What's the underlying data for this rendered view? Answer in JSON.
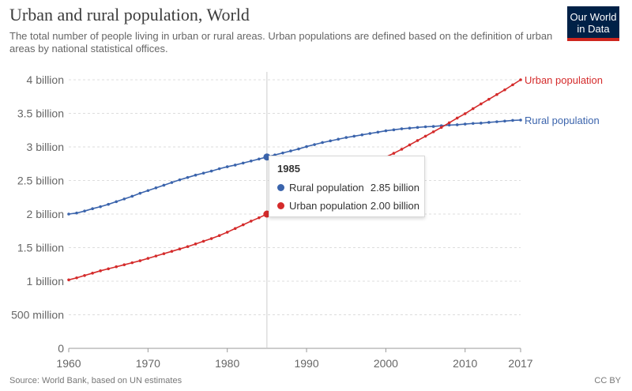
{
  "header": {
    "title": "Urban and rural population, World",
    "subtitle": "The total number of people living in urban or rural areas. Urban populations are defined based on the definition of urban areas by national statistical offices."
  },
  "logo": {
    "line1": "Our World",
    "line2": "in Data"
  },
  "footer": {
    "source": "Source: World Bank, based on UN estimates",
    "license": "CC BY"
  },
  "colors": {
    "rural": "#3b64ac",
    "urban": "#d42b2b",
    "grid": "#dddddd"
  },
  "tooltip": {
    "year": "1985",
    "rows": [
      {
        "name": "Rural population",
        "value": "2.85 billion"
      },
      {
        "name": "Urban population",
        "value": "2.00 billion"
      }
    ]
  },
  "chart_data": {
    "type": "line",
    "xlim": [
      1960,
      2017
    ],
    "ylim": [
      0,
      4000000000
    ],
    "x_ticks": [
      "1960",
      "1970",
      "1980",
      "1990",
      "2000",
      "2010",
      "2017"
    ],
    "y_ticks": [
      {
        "value": 0,
        "label": "0"
      },
      {
        "value": 500000000,
        "label": "500 million"
      },
      {
        "value": 1000000000,
        "label": "1 billion"
      },
      {
        "value": 1500000000,
        "label": "1.5 billion"
      },
      {
        "value": 2000000000,
        "label": "2 billion"
      },
      {
        "value": 2500000000,
        "label": "2.5 billion"
      },
      {
        "value": 3000000000,
        "label": "3 billion"
      },
      {
        "value": 3500000000,
        "label": "3.5 billion"
      },
      {
        "value": 4000000000,
        "label": "4 billion"
      }
    ],
    "x": [
      1960,
      1961,
      1962,
      1963,
      1964,
      1965,
      1966,
      1967,
      1968,
      1969,
      1970,
      1971,
      1972,
      1973,
      1974,
      1975,
      1976,
      1977,
      1978,
      1979,
      1980,
      1981,
      1982,
      1983,
      1984,
      1985,
      1986,
      1987,
      1988,
      1989,
      1990,
      1991,
      1992,
      1993,
      1994,
      1995,
      1996,
      1997,
      1998,
      1999,
      2000,
      2001,
      2002,
      2003,
      2004,
      2005,
      2006,
      2007,
      2008,
      2009,
      2010,
      2011,
      2012,
      2013,
      2014,
      2015,
      2016,
      2017
    ],
    "series": [
      {
        "name": "Rural population",
        "values": [
          2000000000,
          2015000000,
          2045000000,
          2080000000,
          2110000000,
          2145000000,
          2185000000,
          2225000000,
          2265000000,
          2310000000,
          2350000000,
          2390000000,
          2430000000,
          2470000000,
          2510000000,
          2545000000,
          2580000000,
          2610000000,
          2640000000,
          2675000000,
          2705000000,
          2730000000,
          2760000000,
          2790000000,
          2820000000,
          2850000000,
          2880000000,
          2910000000,
          2940000000,
          2970000000,
          3005000000,
          3035000000,
          3065000000,
          3090000000,
          3115000000,
          3140000000,
          3160000000,
          3180000000,
          3200000000,
          3220000000,
          3240000000,
          3255000000,
          3270000000,
          3280000000,
          3290000000,
          3300000000,
          3305000000,
          3315000000,
          3325000000,
          3330000000,
          3340000000,
          3350000000,
          3355000000,
          3365000000,
          3375000000,
          3385000000,
          3395000000,
          3400000000
        ]
      },
      {
        "name": "Urban population",
        "values": [
          1020000000,
          1050000000,
          1085000000,
          1120000000,
          1155000000,
          1185000000,
          1215000000,
          1245000000,
          1275000000,
          1305000000,
          1340000000,
          1375000000,
          1410000000,
          1445000000,
          1480000000,
          1515000000,
          1555000000,
          1595000000,
          1635000000,
          1680000000,
          1730000000,
          1785000000,
          1840000000,
          1895000000,
          1945000000,
          2000000000,
          2060000000,
          2120000000,
          2185000000,
          2245000000,
          2300000000,
          2355000000,
          2410000000,
          2465000000,
          2520000000,
          2575000000,
          2630000000,
          2685000000,
          2740000000,
          2795000000,
          2850000000,
          2905000000,
          2965000000,
          3030000000,
          3095000000,
          3160000000,
          3225000000,
          3290000000,
          3360000000,
          3430000000,
          3495000000,
          3570000000,
          3640000000,
          3710000000,
          3780000000,
          3850000000,
          3925000000,
          4000000000
        ]
      }
    ],
    "highlight_x": 1985
  }
}
